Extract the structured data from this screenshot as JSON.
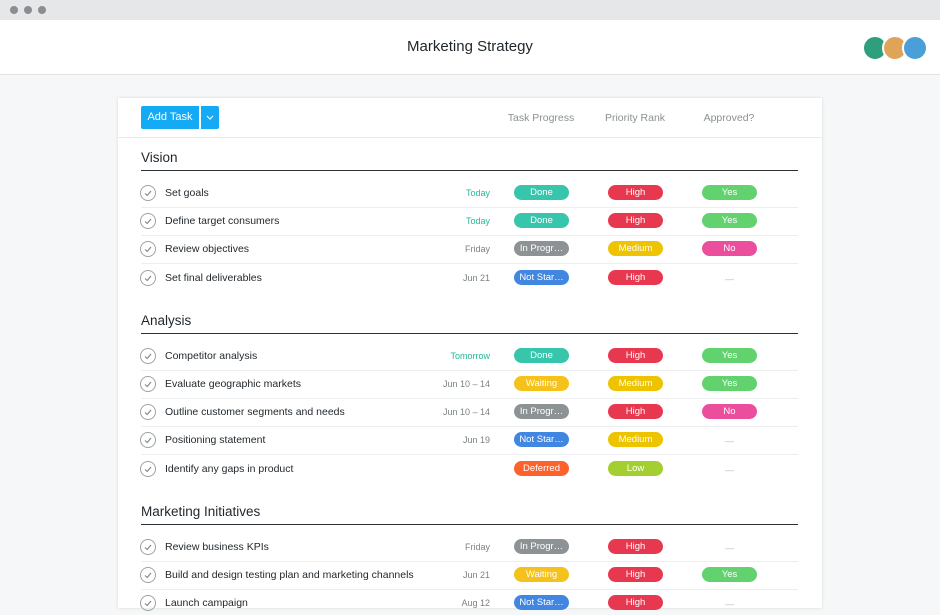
{
  "header": {
    "title": "Marketing Strategy"
  },
  "toolbar": {
    "add_button": "Add Task"
  },
  "columns": [
    "Task Progress",
    "Priority Rank",
    "Approved?"
  ],
  "sections": [
    {
      "title": "Vision",
      "tasks": [
        {
          "name": "Set goals",
          "due": {
            "label": "Today",
            "color": "#25b89a"
          },
          "progress": {
            "label": "Done",
            "color": "#37c5ab"
          },
          "priority": {
            "label": "High",
            "color": "#e8384f"
          },
          "approved": {
            "label": "Yes",
            "color": "#62d26f"
          }
        },
        {
          "name": "Define target consumers",
          "due": {
            "label": "Today",
            "color": "#25b89a"
          },
          "progress": {
            "label": "Done",
            "color": "#37c5ab"
          },
          "priority": {
            "label": "High",
            "color": "#e8384f"
          },
          "approved": {
            "label": "Yes",
            "color": "#62d26f"
          }
        },
        {
          "name": "Review objectives",
          "due": {
            "label": "Friday",
            "color": "#7a8285"
          },
          "progress": {
            "label": "In Progr…",
            "color": "#8d9395"
          },
          "priority": {
            "label": "Medium",
            "color": "#eec300"
          },
          "approved": {
            "label": "No",
            "color": "#ea4e9d"
          }
        },
        {
          "name": "Set final deliverables",
          "due": {
            "label": "Jun 21",
            "color": "#7a8285"
          },
          "progress": {
            "label": "Not Star…",
            "color": "#4186e0"
          },
          "priority": {
            "label": "High",
            "color": "#e8384f"
          },
          "approved": {
            "label": "—",
            "color": null
          }
        }
      ]
    },
    {
      "title": "Analysis",
      "tasks": [
        {
          "name": "Competitor analysis",
          "due": {
            "label": "Tomorrow",
            "color": "#25b89a"
          },
          "progress": {
            "label": "Done",
            "color": "#37c5ab"
          },
          "priority": {
            "label": "High",
            "color": "#e8384f"
          },
          "approved": {
            "label": "Yes",
            "color": "#62d26f"
          }
        },
        {
          "name": "Evaluate geographic markets",
          "due": {
            "label": "Jun 10 – 14",
            "color": "#7a8285"
          },
          "progress": {
            "label": "Waiting",
            "color": "#f5c21b"
          },
          "priority": {
            "label": "Medium",
            "color": "#eec300"
          },
          "approved": {
            "label": "Yes",
            "color": "#62d26f"
          }
        },
        {
          "name": "Outline customer segments and needs",
          "due": {
            "label": "Jun 10 – 14",
            "color": "#7a8285"
          },
          "progress": {
            "label": "In Progr…",
            "color": "#8d9395"
          },
          "priority": {
            "label": "High",
            "color": "#e8384f"
          },
          "approved": {
            "label": "No",
            "color": "#ea4e9d"
          }
        },
        {
          "name": "Positioning statement",
          "due": {
            "label": "Jun 19",
            "color": "#7a8285"
          },
          "progress": {
            "label": "Not Star…",
            "color": "#4186e0"
          },
          "priority": {
            "label": "Medium",
            "color": "#eec300"
          },
          "approved": {
            "label": "—",
            "color": null
          }
        },
        {
          "name": "Identify any gaps in product",
          "due": null,
          "progress": {
            "label": "Deferred",
            "color": "#fd612c"
          },
          "priority": {
            "label": "Low",
            "color": "#a4cf30"
          },
          "approved": {
            "label": "—",
            "color": null
          }
        }
      ]
    },
    {
      "title": "Marketing Initiatives",
      "tasks": [
        {
          "name": "Review business KPIs",
          "due": {
            "label": "Friday",
            "color": "#7a8285"
          },
          "progress": {
            "label": "In Progr…",
            "color": "#8d9395"
          },
          "priority": {
            "label": "High",
            "color": "#e8384f"
          },
          "approved": {
            "label": "—",
            "color": null
          }
        },
        {
          "name": "Build and design testing plan and marketing channels",
          "due": {
            "label": "Jun 21",
            "color": "#7a8285"
          },
          "progress": {
            "label": "Waiting",
            "color": "#f5c21b"
          },
          "priority": {
            "label": "High",
            "color": "#e8384f"
          },
          "approved": {
            "label": "Yes",
            "color": "#62d26f"
          }
        },
        {
          "name": "Launch campaign",
          "due": {
            "label": "Aug 12",
            "color": "#7a8285"
          },
          "progress": {
            "label": "Not Star…",
            "color": "#4186e0"
          },
          "priority": {
            "label": "High",
            "color": "#e8384f"
          },
          "approved": {
            "label": "—",
            "color": null
          }
        }
      ]
    }
  ]
}
